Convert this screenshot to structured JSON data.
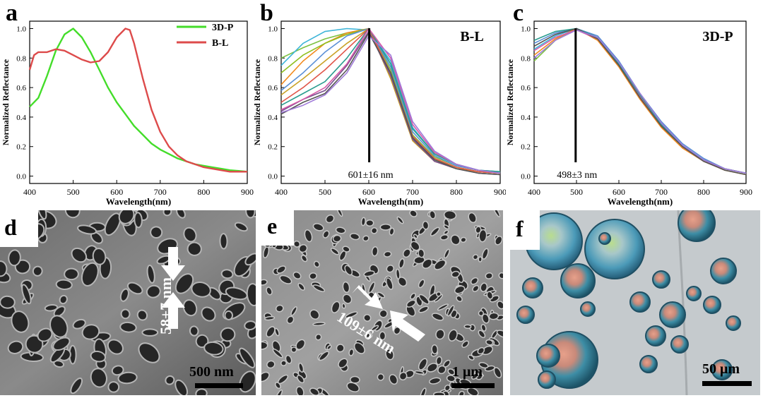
{
  "panels": {
    "a": "a",
    "b": "b",
    "c": "c",
    "d": "d",
    "e": "e",
    "f": "f"
  },
  "colors": {
    "green_3dp": "#44dd2a",
    "red_bl": "#dd4b4b",
    "axis": "#000000"
  },
  "chart_data": [
    {
      "type": "line",
      "panel": "a",
      "xlabel": "Wavelength(nm)",
      "ylabel": "Normalized Reflectance",
      "xlim": [
        400,
        900
      ],
      "ylim": [
        -0.05,
        1.05
      ],
      "xticks": [
        400,
        500,
        600,
        700,
        800,
        900
      ],
      "xtick_labels": [
        "400",
        "500",
        "600",
        "700",
        "800",
        "900"
      ],
      "yticks": [
        0.0,
        0.2,
        0.4,
        0.6,
        0.8,
        1.0
      ],
      "ytick_labels": [
        "0.0",
        "0.2",
        "0.4",
        "0.6",
        "0.8",
        "1.0"
      ],
      "legend_position": "top-right",
      "series": [
        {
          "name": "3D-P",
          "color": "#44dd2a",
          "x": [
            400,
            420,
            440,
            460,
            480,
            500,
            520,
            540,
            560,
            580,
            600,
            620,
            640,
            660,
            680,
            700,
            720,
            740,
            760,
            780,
            800,
            820,
            840,
            860,
            880,
            900
          ],
          "y": [
            0.47,
            0.53,
            0.68,
            0.85,
            0.96,
            1.0,
            0.94,
            0.84,
            0.72,
            0.6,
            0.5,
            0.42,
            0.34,
            0.28,
            0.22,
            0.18,
            0.15,
            0.12,
            0.1,
            0.08,
            0.07,
            0.06,
            0.05,
            0.04,
            0.035,
            0.03
          ]
        },
        {
          "name": "B-L",
          "color": "#dd4b4b",
          "x": [
            400,
            410,
            420,
            440,
            460,
            480,
            500,
            520,
            540,
            560,
            580,
            600,
            620,
            630,
            640,
            660,
            680,
            700,
            720,
            740,
            760,
            780,
            800,
            820,
            840,
            860,
            880,
            900
          ],
          "y": [
            0.72,
            0.82,
            0.84,
            0.84,
            0.86,
            0.85,
            0.82,
            0.79,
            0.77,
            0.78,
            0.84,
            0.94,
            1.0,
            0.99,
            0.9,
            0.66,
            0.45,
            0.3,
            0.2,
            0.14,
            0.1,
            0.08,
            0.06,
            0.05,
            0.04,
            0.03,
            0.03,
            0.03
          ]
        }
      ]
    },
    {
      "type": "line",
      "panel": "b",
      "title": "B-L",
      "xlabel": "Wavelength(nm)",
      "ylabel": "Normalized Reflectance",
      "xlim": [
        400,
        900
      ],
      "ylim": [
        -0.05,
        1.05
      ],
      "xticks": [
        400,
        500,
        600,
        700,
        800,
        900
      ],
      "xtick_labels": [
        "400",
        "500",
        "600",
        "700",
        "800",
        "900"
      ],
      "yticks": [
        0.0,
        0.2,
        0.4,
        0.6,
        0.8,
        1.0
      ],
      "ytick_labels": [
        "0.0",
        "0.2",
        "0.4",
        "0.6",
        "0.8",
        "1.0"
      ],
      "marker_line_x": 601,
      "annotation": "601±16 nm",
      "x": [
        400,
        450,
        500,
        550,
        600,
        650,
        700,
        750,
        800,
        850,
        900
      ],
      "series": [
        {
          "name": "s1",
          "color": "#7cc142",
          "y": [
            0.8,
            0.87,
            0.93,
            0.97,
            1.0,
            0.72,
            0.28,
            0.13,
            0.07,
            0.04,
            0.02
          ]
        },
        {
          "name": "s2",
          "color": "#3cb4d8",
          "y": [
            0.75,
            0.9,
            0.98,
            1.0,
            0.99,
            0.78,
            0.33,
            0.15,
            0.08,
            0.04,
            0.02
          ]
        },
        {
          "name": "s3",
          "color": "#f28a1e",
          "y": [
            0.62,
            0.78,
            0.9,
            0.97,
            1.0,
            0.7,
            0.27,
            0.12,
            0.06,
            0.03,
            0.02
          ]
        },
        {
          "name": "s4",
          "color": "#8fbf1e",
          "y": [
            0.7,
            0.82,
            0.9,
            0.96,
            1.0,
            0.68,
            0.25,
            0.11,
            0.06,
            0.03,
            0.02
          ]
        },
        {
          "name": "s5",
          "color": "#5a8fd6",
          "y": [
            0.58,
            0.7,
            0.84,
            0.95,
            1.0,
            0.74,
            0.3,
            0.14,
            0.07,
            0.04,
            0.03
          ]
        },
        {
          "name": "s6",
          "color": "#c9a227",
          "y": [
            0.55,
            0.66,
            0.78,
            0.9,
            1.0,
            0.66,
            0.24,
            0.1,
            0.05,
            0.03,
            0.02
          ]
        },
        {
          "name": "s7",
          "color": "#e0564a",
          "y": [
            0.5,
            0.6,
            0.72,
            0.86,
            1.0,
            0.7,
            0.27,
            0.12,
            0.06,
            0.03,
            0.02
          ]
        },
        {
          "name": "s8",
          "color": "#2a9d8f",
          "y": [
            0.48,
            0.56,
            0.64,
            0.8,
            1.0,
            0.76,
            0.32,
            0.15,
            0.08,
            0.04,
            0.03
          ]
        },
        {
          "name": "s9",
          "color": "#7a4f8f",
          "y": [
            0.44,
            0.52,
            0.58,
            0.75,
            0.98,
            0.68,
            0.25,
            0.1,
            0.05,
            0.02,
            0.01
          ]
        },
        {
          "name": "s10",
          "color": "#d65aa8",
          "y": [
            0.45,
            0.52,
            0.6,
            0.76,
            1.0,
            0.8,
            0.35,
            0.16,
            0.08,
            0.04,
            0.02
          ]
        },
        {
          "name": "s11",
          "color": "#555555",
          "y": [
            0.42,
            0.5,
            0.56,
            0.72,
            0.97,
            0.7,
            0.26,
            0.11,
            0.05,
            0.02,
            0.01
          ]
        },
        {
          "name": "s12",
          "color": "#a07ad8",
          "y": [
            0.43,
            0.48,
            0.55,
            0.7,
            0.95,
            0.82,
            0.37,
            0.17,
            0.08,
            0.04,
            0.02
          ]
        }
      ]
    },
    {
      "type": "line",
      "panel": "c",
      "title": "3D-P",
      "xlabel": "Wavelength(nm)",
      "ylabel": "Normalized Reflectance",
      "xlim": [
        400,
        900
      ],
      "ylim": [
        -0.05,
        1.05
      ],
      "xticks": [
        400,
        500,
        600,
        700,
        800,
        900
      ],
      "xtick_labels": [
        "400",
        "500",
        "600",
        "700",
        "800",
        "900"
      ],
      "yticks": [
        0.0,
        0.2,
        0.4,
        0.6,
        0.8,
        1.0
      ],
      "ytick_labels": [
        "0.0",
        "0.2",
        "0.4",
        "0.6",
        "0.8",
        "1.0"
      ],
      "marker_line_x": 498,
      "annotation": "498±3 nm",
      "x": [
        400,
        450,
        500,
        550,
        600,
        650,
        700,
        750,
        800,
        850,
        900
      ],
      "series": [
        {
          "name": "s1",
          "color": "#7cc142",
          "y": [
            0.78,
            0.92,
            1.0,
            0.93,
            0.75,
            0.53,
            0.34,
            0.2,
            0.1,
            0.05,
            0.02
          ]
        },
        {
          "name": "s2",
          "color": "#3cb4d8",
          "y": [
            0.86,
            0.95,
            1.0,
            0.94,
            0.77,
            0.55,
            0.36,
            0.21,
            0.11,
            0.05,
            0.02
          ]
        },
        {
          "name": "s3",
          "color": "#f28a1e",
          "y": [
            0.82,
            0.93,
            1.0,
            0.92,
            0.74,
            0.52,
            0.33,
            0.19,
            0.1,
            0.04,
            0.01
          ]
        },
        {
          "name": "s4",
          "color": "#5a8fd6",
          "y": [
            0.9,
            0.97,
            1.0,
            0.95,
            0.78,
            0.56,
            0.37,
            0.22,
            0.12,
            0.05,
            0.02
          ]
        },
        {
          "name": "s5",
          "color": "#d65aa8",
          "y": [
            0.85,
            0.94,
            0.99,
            0.93,
            0.76,
            0.54,
            0.35,
            0.2,
            0.1,
            0.05,
            0.02
          ]
        },
        {
          "name": "s6",
          "color": "#2a9d8f",
          "y": [
            0.92,
            0.98,
            1.0,
            0.94,
            0.76,
            0.55,
            0.35,
            0.2,
            0.11,
            0.05,
            0.02
          ]
        },
        {
          "name": "s7",
          "color": "#555555",
          "y": [
            0.88,
            0.96,
            1.0,
            0.93,
            0.75,
            0.53,
            0.34,
            0.2,
            0.1,
            0.04,
            0.01
          ]
        },
        {
          "name": "s8",
          "color": "#a07ad8",
          "y": [
            0.8,
            0.92,
            0.99,
            0.94,
            0.77,
            0.56,
            0.36,
            0.21,
            0.11,
            0.05,
            0.02
          ]
        }
      ]
    }
  ],
  "micrographs": {
    "d": {
      "arrow_label": "58±7 nm",
      "scale_label": "500 nm"
    },
    "e": {
      "arrow_label": "109±6 nm",
      "scale_label": "1 μm"
    },
    "f": {
      "scale_label": "50 μm"
    }
  }
}
